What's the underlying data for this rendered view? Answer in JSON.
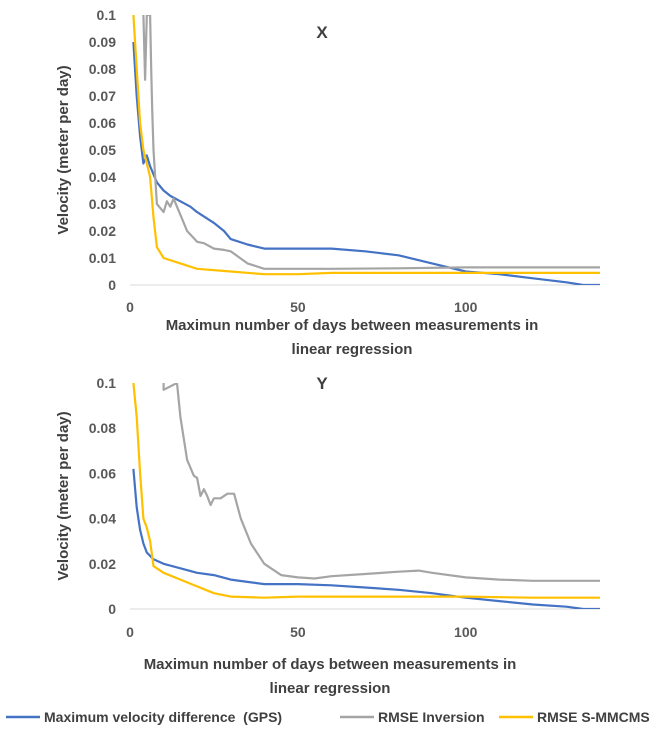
{
  "chart_data": [
    {
      "type": "line",
      "title": "X",
      "xlabel": [
        "Maximun number of days between measurements in",
        "linear regression"
      ],
      "ylabel": "Velocity (meter per day)",
      "xlim": [
        0,
        140
      ],
      "ylim": [
        0,
        0.1
      ],
      "xticks": [
        "0",
        "50",
        "100"
      ],
      "yticks": [
        "0",
        "0.01",
        "0.02",
        "0.03",
        "0.04",
        "0.05",
        "0.06",
        "0.07",
        "0.08",
        "0.09",
        "0.1"
      ],
      "series": [
        {
          "name": "Maximum velocity difference (GPS)",
          "color": "#4472C4",
          "points": [
            [
              1,
              0.09
            ],
            [
              2,
              0.07
            ],
            [
              3,
              0.055
            ],
            [
              4,
              0.045
            ],
            [
              5,
              0.048
            ],
            [
              6,
              0.044
            ],
            [
              8,
              0.038
            ],
            [
              10,
              0.035
            ],
            [
              12,
              0.033
            ],
            [
              15,
              0.031
            ],
            [
              18,
              0.029
            ],
            [
              20,
              0.027
            ],
            [
              25,
              0.023
            ],
            [
              28,
              0.02
            ],
            [
              30,
              0.017
            ],
            [
              35,
              0.015
            ],
            [
              40,
              0.0135
            ],
            [
              50,
              0.0135
            ],
            [
              60,
              0.0135
            ],
            [
              70,
              0.0125
            ],
            [
              80,
              0.011
            ],
            [
              90,
              0.008
            ],
            [
              100,
              0.005
            ],
            [
              110,
              0.004
            ],
            [
              120,
              0.0025
            ],
            [
              130,
              0.001
            ],
            [
              135,
              0
            ],
            [
              140,
              0
            ]
          ]
        },
        {
          "name": "RMSE Inversion",
          "color": "#A5A5A5",
          "points": [
            [
              4,
              0.1
            ],
            [
              4.5,
              0.076
            ],
            [
              5,
              0.1
            ],
            [
              6,
              0.1
            ],
            [
              6.3,
              0.08
            ],
            [
              6.6,
              0.065
            ],
            [
              7,
              0.05
            ],
            [
              8,
              0.03
            ],
            [
              10,
              0.027
            ],
            [
              11,
              0.031
            ],
            [
              12,
              0.029
            ],
            [
              13,
              0.032
            ],
            [
              15,
              0.026
            ],
            [
              17,
              0.02
            ],
            [
              20,
              0.016
            ],
            [
              22,
              0.0155
            ],
            [
              25,
              0.0135
            ],
            [
              28,
              0.013
            ],
            [
              30,
              0.0125
            ],
            [
              35,
              0.008
            ],
            [
              40,
              0.006
            ],
            [
              50,
              0.006
            ],
            [
              60,
              0.006
            ],
            [
              80,
              0.0062
            ],
            [
              100,
              0.0065
            ],
            [
              140,
              0.0065
            ]
          ]
        },
        {
          "name": "RMSE S-MMCMS",
          "color": "#FFC000",
          "points": [
            [
              1,
              0.1
            ],
            [
              2,
              0.08
            ],
            [
              3,
              0.06
            ],
            [
              4,
              0.05
            ],
            [
              5,
              0.045
            ],
            [
              6,
              0.04
            ],
            [
              7,
              0.025
            ],
            [
              8,
              0.014
            ],
            [
              10,
              0.01
            ],
            [
              15,
              0.008
            ],
            [
              20,
              0.006
            ],
            [
              30,
              0.005
            ],
            [
              40,
              0.004
            ],
            [
              50,
              0.004
            ],
            [
              60,
              0.0045
            ],
            [
              80,
              0.0045
            ],
            [
              100,
              0.0045
            ],
            [
              140,
              0.0045
            ]
          ]
        }
      ]
    },
    {
      "type": "line",
      "title": "Y",
      "xlabel": [
        "Maximun number of days between measurements in",
        "linear regression"
      ],
      "ylabel": "Velocity (meter per day)",
      "xlim": [
        0,
        140
      ],
      "ylim": [
        0,
        0.1
      ],
      "xticks": [
        "0",
        "50",
        "100"
      ],
      "yticks": [
        "0",
        "0.02",
        "0.04",
        "0.06",
        "0.08",
        "0.1"
      ],
      "series": [
        {
          "name": "Maximum velocity difference (GPS)",
          "color": "#4472C4",
          "points": [
            [
              1,
              0.062
            ],
            [
              2,
              0.045
            ],
            [
              3,
              0.035
            ],
            [
              4,
              0.029
            ],
            [
              5,
              0.025
            ],
            [
              7,
              0.022
            ],
            [
              10,
              0.02
            ],
            [
              15,
              0.018
            ],
            [
              20,
              0.016
            ],
            [
              25,
              0.015
            ],
            [
              30,
              0.013
            ],
            [
              35,
              0.012
            ],
            [
              40,
              0.011
            ],
            [
              50,
              0.011
            ],
            [
              60,
              0.0105
            ],
            [
              70,
              0.0095
            ],
            [
              80,
              0.0085
            ],
            [
              90,
              0.007
            ],
            [
              100,
              0.005
            ],
            [
              110,
              0.0035
            ],
            [
              120,
              0.002
            ],
            [
              130,
              0.001
            ],
            [
              135,
              0
            ],
            [
              140,
              0
            ]
          ]
        },
        {
          "name": "RMSE Inversion",
          "color": "#A5A5A5",
          "points": [
            [
              10,
              0.1
            ],
            [
              10,
              0.097
            ],
            [
              14,
              0.1
            ],
            [
              15,
              0.085
            ],
            [
              17,
              0.066
            ],
            [
              19,
              0.059
            ],
            [
              20,
              0.058
            ],
            [
              21,
              0.05
            ],
            [
              22,
              0.053
            ],
            [
              23,
              0.05
            ],
            [
              24,
              0.046
            ],
            [
              25,
              0.049
            ],
            [
              27,
              0.049
            ],
            [
              29,
              0.051
            ],
            [
              31,
              0.051
            ],
            [
              33,
              0.04
            ],
            [
              36,
              0.029
            ],
            [
              40,
              0.02
            ],
            [
              45,
              0.015
            ],
            [
              50,
              0.014
            ],
            [
              55,
              0.0135
            ],
            [
              60,
              0.0145
            ],
            [
              70,
              0.0155
            ],
            [
              80,
              0.0165
            ],
            [
              86,
              0.017
            ],
            [
              90,
              0.016
            ],
            [
              100,
              0.014
            ],
            [
              110,
              0.013
            ],
            [
              120,
              0.0125
            ],
            [
              140,
              0.0125
            ]
          ]
        },
        {
          "name": "RMSE S-MMCMS",
          "color": "#FFC000",
          "points": [
            [
              1,
              0.1
            ],
            [
              2,
              0.085
            ],
            [
              3,
              0.06
            ],
            [
              4,
              0.04
            ],
            [
              5,
              0.036
            ],
            [
              6,
              0.03
            ],
            [
              7,
              0.019
            ],
            [
              10,
              0.016
            ],
            [
              15,
              0.013
            ],
            [
              20,
              0.01
            ],
            [
              25,
              0.007
            ],
            [
              30,
              0.0055
            ],
            [
              40,
              0.005
            ],
            [
              50,
              0.0055
            ],
            [
              70,
              0.0055
            ],
            [
              90,
              0.0055
            ],
            [
              100,
              0.0055
            ],
            [
              120,
              0.005
            ],
            [
              140,
              0.005
            ]
          ]
        }
      ]
    }
  ],
  "legend": [
    {
      "label": "Maximum velocity difference  (GPS)",
      "color": "#4472C4"
    },
    {
      "label": "RMSE Inversion",
      "color": "#A5A5A5"
    },
    {
      "label": "RMSE S-MMCMS",
      "color": "#FFC000"
    }
  ]
}
